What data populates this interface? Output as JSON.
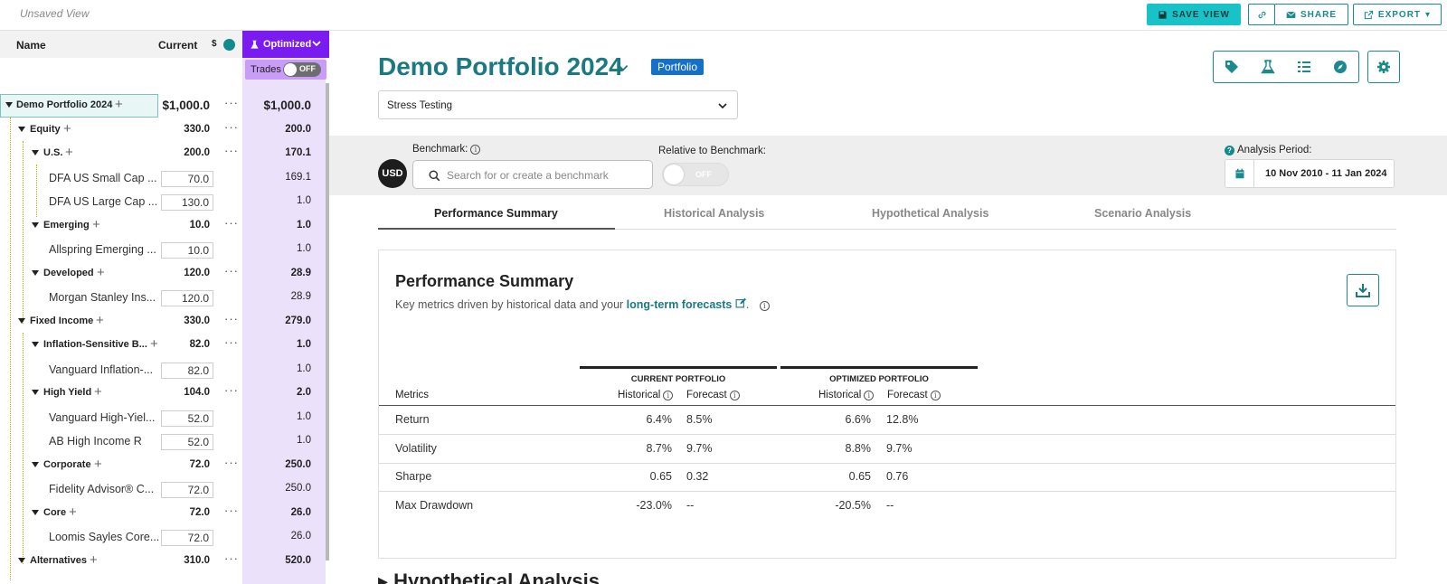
{
  "topbar": {
    "view_status": "Unsaved View",
    "save_view": "SAVE VIEW",
    "share": "SHARE",
    "export": "EXPORT"
  },
  "colors": {
    "teal": "#1a8a8f",
    "accent": "#17c3c6",
    "optimized": "#7a1cf0",
    "badge": "#1570c8"
  },
  "left_panel": {
    "col_name": "Name",
    "col_current": "Current",
    "currency_symbol": "$",
    "optimized_label": "Optimized",
    "trades_label": "Trades",
    "trades_toggle": "OFF",
    "rows": [
      {
        "name": "Demo Portfolio 2024",
        "current": "$1,000.0",
        "optimized": "$1,000.0"
      },
      {
        "name": "Equity",
        "current": "330.0",
        "optimized": "200.0"
      },
      {
        "name": "U.S.",
        "current": "200.0",
        "optimized": "170.1"
      },
      {
        "name": "DFA US Small Cap ...",
        "current": "70.0",
        "optimized": "169.1"
      },
      {
        "name": "DFA US Large Cap ...",
        "current": "130.0",
        "optimized": "1.0"
      },
      {
        "name": "Emerging",
        "current": "10.0",
        "optimized": "1.0"
      },
      {
        "name": "Allspring Emerging ...",
        "current": "10.0",
        "optimized": "1.0"
      },
      {
        "name": "Developed",
        "current": "120.0",
        "optimized": "28.9"
      },
      {
        "name": "Morgan Stanley Ins...",
        "current": "120.0",
        "optimized": "28.9"
      },
      {
        "name": "Fixed Income",
        "current": "330.0",
        "optimized": "279.0"
      },
      {
        "name": "Inflation-Sensitive B...",
        "current": "82.0",
        "optimized": "1.0"
      },
      {
        "name": "Vanguard Inflation-...",
        "current": "82.0",
        "optimized": "1.0"
      },
      {
        "name": "High Yield",
        "current": "104.0",
        "optimized": "2.0"
      },
      {
        "name": "Vanguard High-Yiel...",
        "current": "52.0",
        "optimized": "1.0"
      },
      {
        "name": "AB High Income R",
        "current": "52.0",
        "optimized": "1.0"
      },
      {
        "name": "Corporate",
        "current": "72.0",
        "optimized": "250.0"
      },
      {
        "name": "Fidelity Advisor® C...",
        "current": "72.0",
        "optimized": "250.0"
      },
      {
        "name": "Core",
        "current": "72.0",
        "optimized": "26.0"
      },
      {
        "name": "Loomis Sayles Core...",
        "current": "72.0",
        "optimized": "26.0"
      },
      {
        "name": "Alternatives",
        "current": "310.0",
        "optimized": "520.0"
      }
    ]
  },
  "main": {
    "title": "Demo Portfolio 2024",
    "badge": "Portfolio",
    "analysis_select": "Stress Testing",
    "benchmark": {
      "currency": "USD",
      "label": "Benchmark:",
      "search_placeholder": "Search for or create a benchmark",
      "relative_label": "Relative to Benchmark:",
      "relative_toggle": "OFF",
      "period_label": "Analysis Period:",
      "period_value": "10 Nov 2010 - 11 Jan 2024"
    },
    "tabs": [
      "Performance Summary",
      "Historical Analysis",
      "Hypothetical Analysis",
      "Scenario Analysis"
    ],
    "summary": {
      "title": "Performance Summary",
      "subtitle_pre": "Key metrics driven by historical data and your ",
      "subtitle_link": "long-term forecasts",
      "subtitle_post": ".",
      "group_current": "CURRENT PORTFOLIO",
      "group_optimized": "OPTIMIZED PORTFOLIO",
      "col_metrics": "Metrics",
      "col_historical": "Historical",
      "col_forecast": "Forecast",
      "rows": [
        {
          "metric": "Return",
          "cur_hist": "6.4%",
          "cur_fc": "8.5%",
          "opt_hist": "6.6%",
          "opt_fc": "12.8%"
        },
        {
          "metric": "Volatility",
          "cur_hist": "8.7%",
          "cur_fc": "9.7%",
          "opt_hist": "8.8%",
          "opt_fc": "9.7%"
        },
        {
          "metric": "Sharpe",
          "cur_hist": "0.65",
          "cur_fc": "0.32",
          "opt_hist": "0.65",
          "opt_fc": "0.76"
        },
        {
          "metric": "Max Drawdown",
          "cur_hist": "-23.0%",
          "cur_fc": "--",
          "opt_hist": "-20.5%",
          "opt_fc": "--"
        }
      ]
    },
    "next_section": "Hypothetical Analysis"
  }
}
